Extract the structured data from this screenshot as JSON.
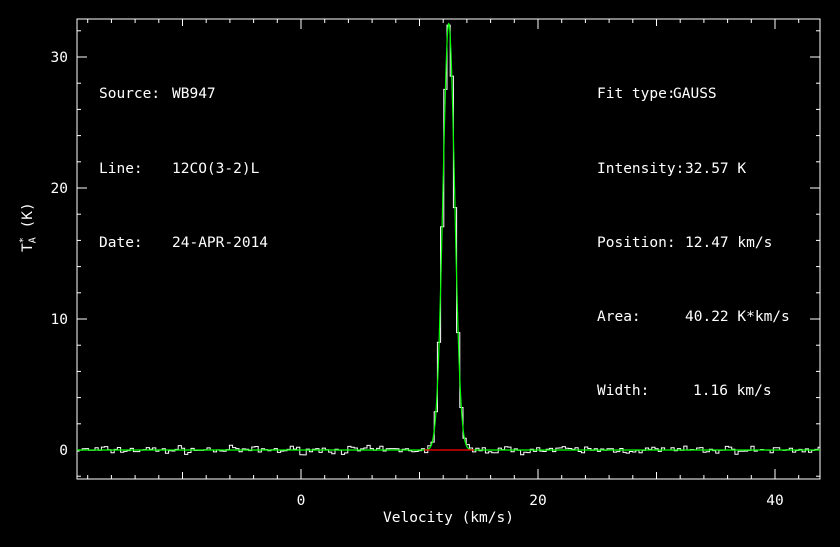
{
  "header_left": [
    {
      "key": "Source:",
      "value": "WB947"
    },
    {
      "key": "Line:",
      "value": "12CO(3-2)L"
    },
    {
      "key": "Date:",
      "value": "24-APR-2014"
    }
  ],
  "header_right": [
    {
      "key": "Fit type:",
      "value": "GAUSS"
    },
    {
      "key": "Intensity:",
      "value": "32.57 K"
    },
    {
      "key": "Position:",
      "value": "12.47 km/s"
    },
    {
      "key": "Area:",
      "value": "40.22 K*km/s"
    },
    {
      "key": "Width:",
      "value": "1.16 km/s"
    }
  ],
  "axes": {
    "ylabel_main": "T",
    "ylabel_sup": "*",
    "ylabel_sub": "A",
    "ylabel_unit": " (K)",
    "xlabel": "Velocity (km/s)"
  },
  "colors": {
    "background": "#000000",
    "spectrum": "#ffffff",
    "fit": "#00ff00",
    "baseline": "#ff0000"
  },
  "chart_data": {
    "type": "line",
    "xlabel": "Velocity (km/s)",
    "ylabel": "T_A* (K)",
    "xlim": [
      -19.0,
      43.8
    ],
    "ylim": [
      -2.3,
      33.5
    ],
    "xticks": [
      0,
      20,
      40
    ],
    "yticks": [
      0,
      10,
      20,
      30
    ],
    "grid": false,
    "series": [
      {
        "kind": "histogram-spectrum",
        "x_start": -19.0,
        "x_end": 43.8,
        "noise_rms": 0.18,
        "peak": 32.57,
        "center": 12.47,
        "fwhm": 1.16
      },
      {
        "kind": "gaussian-fit",
        "amplitude": 32.57,
        "center": 12.47,
        "fwhm": 1.16,
        "area": 40.22
      },
      {
        "kind": "fit-window",
        "x_range": [
          10.4,
          14.6
        ],
        "y": 0
      }
    ]
  }
}
